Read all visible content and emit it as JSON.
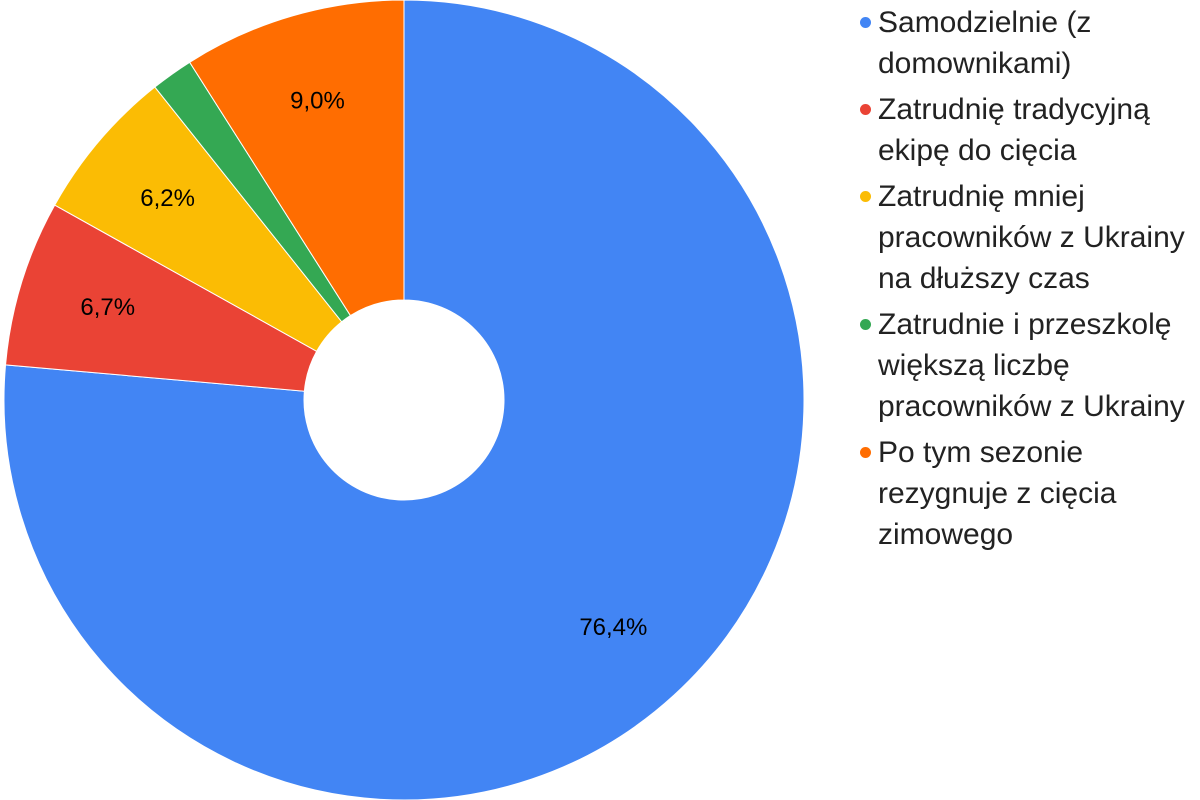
{
  "chart_data": {
    "type": "pie",
    "categories": [
      "Samodzielnie (z domownikami)",
      "Zatrudnię tradycyjną ekipę do cięcia",
      "Zatrudnię mniej pracowników z Ukrainy na dłuższy czas",
      "Zatrudnie i przeszkolę większą liczbę pracowników z Ukrainy",
      "Po tym sezonie rezygnuje z cięcia zimowego"
    ],
    "values": [
      76.4,
      6.7,
      6.2,
      1.7,
      9.0
    ],
    "value_labels": [
      "76,4%",
      "6,7%",
      "6,2%",
      null,
      "9,0%"
    ],
    "colors": [
      "#4285f4",
      "#ea4335",
      "#fbbc04",
      "#34a853",
      "#ff6d01"
    ],
    "legend": "right"
  }
}
